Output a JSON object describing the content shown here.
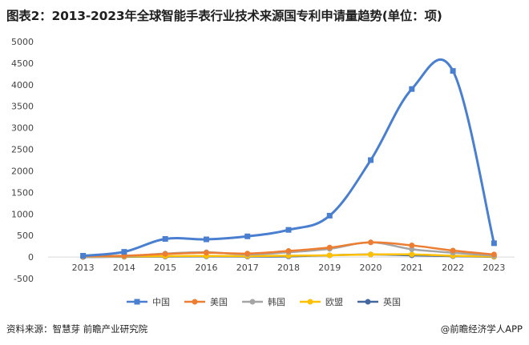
{
  "title": "图表2：2013-2023年全球智能手表行业技术来源国专利申请量趋势(单位：项)",
  "footer": {
    "source": "资料来源：智慧芽 前瞻产业研究院",
    "brand": "@前瞻经济学人APP"
  },
  "colors": {
    "china": "#4a7fd0",
    "usa": "#ed7d31",
    "korea": "#a5a5a5",
    "eu": "#ffc000",
    "uk": "#44679e",
    "axis": "#d9d9d9",
    "text": "#444444"
  },
  "chart_data": {
    "type": "line",
    "smooth": true,
    "categories": [
      "2013",
      "2014",
      "2015",
      "2016",
      "2017",
      "2018",
      "2019",
      "2020",
      "2021",
      "2022",
      "2023"
    ],
    "ylim": [
      -500,
      5000
    ],
    "yticks": [
      -500,
      0,
      500,
      1000,
      1500,
      2000,
      2500,
      3000,
      3500,
      4000,
      4500,
      5000
    ],
    "grid": false,
    "legend_position": "bottom",
    "series": [
      {
        "name": "中国",
        "values": [
          30,
          120,
          420,
          410,
          480,
          630,
          960,
          2250,
          3900,
          4320,
          320
        ],
        "color": "#4a7fd0",
        "marker": "square"
      },
      {
        "name": "美国",
        "values": [
          20,
          30,
          70,
          100,
          80,
          140,
          220,
          340,
          270,
          150,
          60
        ],
        "color": "#ed7d31",
        "marker": "circle"
      },
      {
        "name": "韩国",
        "values": [
          10,
          20,
          80,
          110,
          60,
          110,
          190,
          340,
          180,
          100,
          30
        ],
        "color": "#a5a5a5",
        "marker": "circle"
      },
      {
        "name": "欧盟",
        "values": [
          5,
          10,
          20,
          25,
          20,
          30,
          40,
          60,
          60,
          30,
          10
        ],
        "color": "#ffc000",
        "marker": "circle"
      },
      {
        "name": "英国",
        "values": [
          0,
          5,
          10,
          15,
          10,
          15,
          40,
          60,
          40,
          20,
          5
        ],
        "color": "#44679e",
        "marker": "circle"
      }
    ]
  }
}
